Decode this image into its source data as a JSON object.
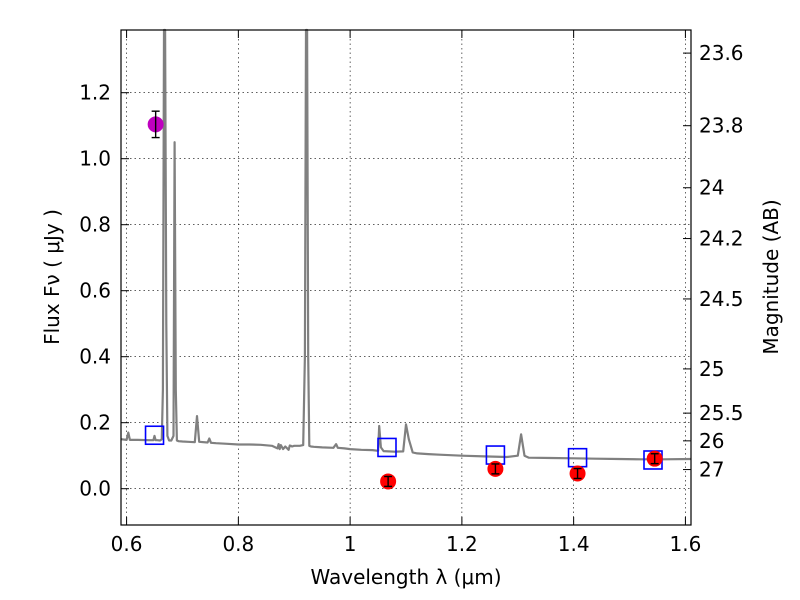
{
  "chart_data": {
    "type": "line",
    "title": "",
    "xlabel": "Wavelength  λ (μm)",
    "ylabel": "Flux  Fν  ( μJy )",
    "y2label": "Magnitude (AB)",
    "xlim": [
      0.59,
      1.61
    ],
    "ylim": [
      -0.11,
      1.39
    ],
    "grid": true,
    "xticks": [
      0.6,
      0.8,
      1.0,
      1.2,
      1.4,
      1.6
    ],
    "xtick_labels": [
      "0.6",
      "0.8",
      "1",
      "1.2",
      "1.4",
      "1.6"
    ],
    "yticks": [
      0.0,
      0.2,
      0.4,
      0.6,
      0.8,
      1.0,
      1.2
    ],
    "ytick_labels": [
      "0.0",
      "0.2",
      "0.4",
      "0.6",
      "0.8",
      "1.0",
      "1.2"
    ],
    "y2ticks": [
      {
        "flux": 1.32,
        "label": "23.6"
      },
      {
        "flux": 1.1,
        "label": "23.8"
      },
      {
        "flux": 0.912,
        "label": "24"
      },
      {
        "flux": 0.758,
        "label": "24.2"
      },
      {
        "flux": 0.575,
        "label": "24.5"
      },
      {
        "flux": 0.363,
        "label": "25"
      },
      {
        "flux": 0.229,
        "label": "25.5"
      },
      {
        "flux": 0.145,
        "label": "26"
      },
      {
        "flux": 0.058,
        "label": "27"
      }
    ],
    "series": [
      {
        "kind": "line",
        "color": "#808080",
        "x": [
          0.59,
          0.6,
          0.603,
          0.606,
          0.62,
          0.64,
          0.648,
          0.65,
          0.652,
          0.655,
          0.66,
          0.663,
          0.665,
          0.667,
          0.669,
          0.671,
          0.673,
          0.676,
          0.68,
          0.684,
          0.686,
          0.688,
          0.69,
          0.693,
          0.7,
          0.71,
          0.722,
          0.726,
          0.73,
          0.745,
          0.748,
          0.751,
          0.76,
          0.78,
          0.8,
          0.82,
          0.84,
          0.86,
          0.87,
          0.872,
          0.874,
          0.876,
          0.88,
          0.884,
          0.89,
          0.892,
          0.894,
          0.896,
          0.9,
          0.91,
          0.916,
          0.919,
          0.921,
          0.923,
          0.925,
          0.927,
          0.93,
          0.935,
          0.95,
          0.97,
          0.975,
          0.978,
          0.99,
          1.0,
          1.02,
          1.04,
          1.05,
          1.052,
          1.055,
          1.06,
          1.08,
          1.095,
          1.1,
          1.105,
          1.112,
          1.12,
          1.14,
          1.16,
          1.2,
          1.24,
          1.28,
          1.3,
          1.306,
          1.312,
          1.32,
          1.36,
          1.4,
          1.44,
          1.48,
          1.52,
          1.56,
          1.61
        ],
        "y": [
          0.15,
          0.148,
          0.17,
          0.148,
          0.148,
          0.147,
          0.147,
          0.16,
          0.147,
          0.147,
          0.146,
          0.15,
          0.3,
          1.39,
          1.39,
          0.5,
          0.16,
          0.146,
          0.146,
          0.16,
          1.05,
          0.3,
          0.146,
          0.144,
          0.143,
          0.142,
          0.141,
          0.22,
          0.142,
          0.14,
          0.152,
          0.139,
          0.138,
          0.136,
          0.134,
          0.134,
          0.133,
          0.13,
          0.122,
          0.135,
          0.12,
          0.132,
          0.12,
          0.128,
          0.118,
          0.131,
          0.13,
          0.128,
          0.13,
          0.13,
          0.132,
          0.4,
          1.39,
          1.39,
          0.4,
          0.13,
          0.128,
          0.127,
          0.125,
          0.124,
          0.135,
          0.124,
          0.122,
          0.12,
          0.118,
          0.117,
          0.115,
          0.19,
          0.125,
          0.114,
          0.112,
          0.113,
          0.195,
          0.15,
          0.11,
          0.107,
          0.105,
          0.103,
          0.1,
          0.098,
          0.096,
          0.1,
          0.165,
          0.1,
          0.094,
          0.093,
          0.092,
          0.091,
          0.09,
          0.089,
          0.089,
          0.09
        ]
      },
      {
        "kind": "open-squares",
        "color": "#0000ff",
        "x": [
          0.65,
          1.066,
          1.26,
          1.407,
          1.542
        ],
        "y": [
          0.162,
          0.125,
          0.102,
          0.094,
          0.087
        ]
      },
      {
        "kind": "filled-circles",
        "color": "#ff0000",
        "x": [
          1.068,
          1.26,
          1.407,
          1.545
        ],
        "y": [
          0.022,
          0.06,
          0.046,
          0.091
        ],
        "err": [
          0.015,
          0.015,
          0.015,
          0.015
        ]
      },
      {
        "kind": "filled-circles",
        "color": "#bf00bf",
        "x": [
          0.652
        ],
        "y": [
          1.104
        ],
        "err": [
          0.04
        ]
      }
    ]
  }
}
